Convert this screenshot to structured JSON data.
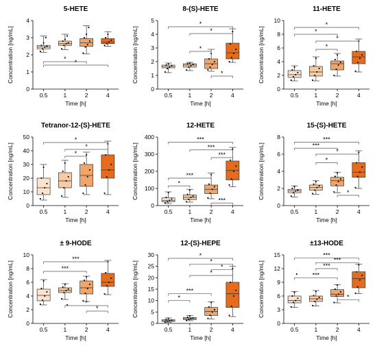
{
  "colors": {
    "t0_5": "#fbe3cf",
    "t1": "#f8cba3",
    "t2": "#f0a56b",
    "t4": "#e46c1c",
    "stroke": "#333333",
    "bracket": "#555555"
  },
  "chart_data": [
    {
      "type": "box",
      "title": "5-HETE",
      "xlabel": "Time [h]",
      "ylabel": "Concentration [ng/mL]",
      "categories": [
        "0.5",
        "1",
        "2",
        "4"
      ],
      "ylim": [
        0,
        4
      ],
      "yticks": [
        0,
        1,
        2,
        3,
        4
      ],
      "boxes": [
        {
          "min": 2.15,
          "q1": 2.35,
          "median": 2.45,
          "q3": 2.55,
          "max": 3.1,
          "points": [
            2.2,
            2.35,
            2.45,
            2.5,
            2.55,
            2.7,
            3.0
          ]
        },
        {
          "min": 2.3,
          "q1": 2.55,
          "median": 2.65,
          "q3": 2.8,
          "max": 3.2,
          "points": [
            2.35,
            2.55,
            2.65,
            2.7,
            2.8,
            2.9,
            3.1
          ]
        },
        {
          "min": 2.05,
          "q1": 2.5,
          "median": 2.7,
          "q3": 2.95,
          "max": 3.7,
          "points": [
            2.1,
            2.45,
            2.6,
            2.8,
            3.0,
            3.2,
            3.6
          ]
        },
        {
          "min": 2.5,
          "q1": 2.65,
          "median": 2.75,
          "q3": 2.95,
          "max": 3.35,
          "points": [
            2.55,
            2.65,
            2.75,
            2.85,
            3.0,
            3.2
          ]
        }
      ],
      "brackets": [
        {
          "from": 0,
          "to": 2,
          "y": 1.6,
          "label": "*"
        },
        {
          "from": 0,
          "to": 3,
          "y": 1.4,
          "label": "*"
        }
      ]
    },
    {
      "type": "box",
      "title": "8-(S)-HETE",
      "xlabel": "Time [h]",
      "ylabel": "Concentration [ng/mL]",
      "categories": [
        "0.5",
        "1",
        "2",
        "4"
      ],
      "ylim": [
        0,
        5
      ],
      "yticks": [
        0,
        1,
        2,
        3,
        4,
        5
      ],
      "boxes": [
        {
          "min": 1.2,
          "q1": 1.55,
          "median": 1.65,
          "q3": 1.75,
          "max": 1.9,
          "points": [
            1.25,
            1.5,
            1.6,
            1.7,
            1.75,
            1.85
          ]
        },
        {
          "min": 1.35,
          "q1": 1.6,
          "median": 1.75,
          "q3": 1.85,
          "max": 1.95,
          "points": [
            1.4,
            1.6,
            1.7,
            1.8,
            1.85,
            1.9
          ]
        },
        {
          "min": 1.3,
          "q1": 1.5,
          "median": 1.85,
          "q3": 2.2,
          "max": 2.9,
          "points": [
            1.4,
            1.6,
            1.8,
            2.0,
            2.2,
            2.6
          ]
        },
        {
          "min": 1.95,
          "q1": 2.2,
          "median": 2.65,
          "q3": 3.35,
          "max": 4.4,
          "points": [
            2.0,
            2.3,
            2.6,
            2.9,
            3.3,
            4.2
          ]
        }
      ],
      "brackets": [
        {
          "from": 0,
          "to": 3,
          "y": 4.55,
          "label": "*"
        },
        {
          "from": 1,
          "to": 3,
          "y": 4.05,
          "label": "*"
        },
        {
          "from": 1,
          "to": 2,
          "y": 2.75,
          "label": "*"
        },
        {
          "from": 2,
          "to": 3,
          "y": 0.95,
          "label": "*"
        }
      ]
    },
    {
      "type": "box",
      "title": "11-HETE",
      "xlabel": "Time [h]",
      "ylabel": "Concentration [ng/mL]",
      "categories": [
        "0.5",
        "1",
        "2",
        "4"
      ],
      "ylim": [
        0,
        10
      ],
      "yticks": [
        0,
        2,
        4,
        6,
        8,
        10
      ],
      "boxes": [
        {
          "min": 1.2,
          "q1": 1.7,
          "median": 2.1,
          "q3": 2.7,
          "max": 3.4,
          "points": [
            1.3,
            1.8,
            2.1,
            2.4,
            2.8,
            3.2
          ]
        },
        {
          "min": 1.2,
          "q1": 1.9,
          "median": 2.5,
          "q3": 3.3,
          "max": 4.7,
          "points": [
            1.3,
            2.0,
            2.5,
            3.0,
            3.4,
            4.5
          ]
        },
        {
          "min": 1.9,
          "q1": 2.8,
          "median": 3.7,
          "q3": 4.1,
          "max": 5.2,
          "points": [
            2.0,
            2.9,
            3.5,
            3.9,
            4.3,
            5.0
          ]
        },
        {
          "min": 2.5,
          "q1": 3.7,
          "median": 4.7,
          "q3": 5.5,
          "max": 7.3,
          "points": [
            2.6,
            3.9,
            4.5,
            5.0,
            5.5,
            7.0
          ]
        }
      ],
      "brackets": [
        {
          "from": 0,
          "to": 3,
          "y": 9.0,
          "label": "*"
        },
        {
          "from": 0,
          "to": 2,
          "y": 8.0,
          "label": "*"
        },
        {
          "from": 1,
          "to": 3,
          "y": 7.0,
          "label": "*"
        },
        {
          "from": 1,
          "to": 2,
          "y": 5.8,
          "label": "*"
        }
      ]
    },
    {
      "type": "box",
      "title": "Tetranor-12-(S)-HETE",
      "xlabel": "Time [h]",
      "ylabel": "Concentration [ng/mL]",
      "categories": [
        "0.5",
        "1",
        "2",
        "4"
      ],
      "ylim": [
        0,
        50
      ],
      "yticks": [
        0,
        10,
        20,
        30,
        40,
        50
      ],
      "boxes": [
        {
          "min": 4,
          "q1": 8,
          "median": 13,
          "q3": 20,
          "max": 30,
          "points": [
            5,
            9,
            13,
            16,
            20,
            28
          ]
        },
        {
          "min": 6,
          "q1": 13,
          "median": 18,
          "q3": 24,
          "max": 33,
          "points": [
            7,
            13,
            18,
            21,
            25,
            31
          ]
        },
        {
          "min": 8,
          "q1": 14,
          "median": 22,
          "q3": 30,
          "max": 39,
          "points": [
            9,
            15,
            21,
            26,
            31,
            37
          ]
        },
        {
          "min": 8,
          "q1": 20,
          "median": 26,
          "q3": 37,
          "max": 47,
          "points": [
            9,
            21,
            26,
            30,
            37,
            45
          ]
        }
      ],
      "brackets": [
        {
          "from": 0,
          "to": 3,
          "y": 46,
          "label": "*"
        },
        {
          "from": 1,
          "to": 3,
          "y": 41,
          "label": "*"
        },
        {
          "from": 1,
          "to": 2,
          "y": 36,
          "label": "*"
        }
      ]
    },
    {
      "type": "box",
      "title": "12-HETE",
      "xlabel": "Time [h]",
      "ylabel": "Concentration [ng/mL]",
      "categories": [
        "0.5",
        "1",
        "2",
        "4"
      ],
      "ylim": [
        0,
        400
      ],
      "yticks": [
        0,
        100,
        200,
        300,
        400
      ],
      "boxes": [
        {
          "min": 12,
          "q1": 22,
          "median": 30,
          "q3": 45,
          "max": 80,
          "points": [
            15,
            22,
            30,
            38,
            48,
            75
          ]
        },
        {
          "min": 20,
          "q1": 35,
          "median": 48,
          "q3": 62,
          "max": 95,
          "points": [
            22,
            36,
            48,
            55,
            65,
            90
          ]
        },
        {
          "min": 40,
          "q1": 70,
          "median": 95,
          "q3": 120,
          "max": 190,
          "points": [
            45,
            72,
            95,
            110,
            125,
            180
          ]
        },
        {
          "min": 110,
          "q1": 150,
          "median": 205,
          "q3": 260,
          "max": 340,
          "points": [
            120,
            155,
            200,
            230,
            265,
            330
          ]
        }
      ],
      "brackets": [
        {
          "from": 0,
          "to": 3,
          "y": 370,
          "label": "***"
        },
        {
          "from": 1,
          "to": 3,
          "y": 325,
          "label": "***"
        },
        {
          "from": 2,
          "to": 3,
          "y": 280,
          "label": "***"
        },
        {
          "from": 0,
          "to": 2,
          "y": 160,
          "label": "***"
        },
        {
          "from": 0,
          "to": 1,
          "y": 115,
          "label": "*"
        },
        {
          "from": 2,
          "to": 3,
          "y": 15,
          "label": "***"
        }
      ]
    },
    {
      "type": "box",
      "title": "15-(S)-HETE",
      "xlabel": "Time [h]",
      "ylabel": "Concentration [ng/mL]",
      "categories": [
        "0.5",
        "1",
        "2",
        "4"
      ],
      "ylim": [
        0,
        8
      ],
      "yticks": [
        0,
        2,
        4,
        6,
        8
      ],
      "boxes": [
        {
          "min": 1.0,
          "q1": 1.5,
          "median": 1.7,
          "q3": 1.9,
          "max": 2.3,
          "points": [
            1.1,
            1.5,
            1.7,
            1.8,
            2.0,
            2.2
          ]
        },
        {
          "min": 1.3,
          "q1": 1.8,
          "median": 2.1,
          "q3": 2.4,
          "max": 2.9,
          "points": [
            1.4,
            1.8,
            2.1,
            2.3,
            2.5,
            2.8
          ]
        },
        {
          "min": 1.5,
          "q1": 2.3,
          "median": 2.9,
          "q3": 3.3,
          "max": 3.9,
          "points": [
            1.6,
            2.4,
            2.8,
            3.1,
            3.4,
            3.8
          ]
        },
        {
          "min": 2.0,
          "q1": 3.3,
          "median": 3.9,
          "q3": 5.0,
          "max": 6.4,
          "points": [
            2.1,
            3.4,
            3.9,
            4.5,
            5.0,
            6.2
          ]
        }
      ],
      "brackets": [
        {
          "from": 0,
          "to": 3,
          "y": 7.4,
          "label": "***"
        },
        {
          "from": 0,
          "to": 2,
          "y": 6.7,
          "label": "***"
        },
        {
          "from": 1,
          "to": 3,
          "y": 6.0,
          "label": "*"
        },
        {
          "from": 1,
          "to": 2,
          "y": 5.0,
          "label": "*"
        },
        {
          "from": 2,
          "to": 3,
          "y": 1.2,
          "label": "*"
        }
      ]
    },
    {
      "type": "box",
      "title": "± 9-HODE",
      "xlabel": "Time [h]",
      "ylabel": "Concentration [ng/mL]",
      "categories": [
        "0.5",
        "1",
        "2",
        "4"
      ],
      "ylim": [
        0,
        10
      ],
      "yticks": [
        0,
        2,
        4,
        6,
        8,
        10
      ],
      "boxes": [
        {
          "min": 2.7,
          "q1": 3.3,
          "median": 4.1,
          "q3": 5.0,
          "max": 6.4,
          "points": [
            2.8,
            3.4,
            4.0,
            4.6,
            5.1,
            6.2
          ]
        },
        {
          "min": 3.5,
          "q1": 4.5,
          "median": 4.8,
          "q3": 5.2,
          "max": 5.8,
          "points": [
            3.6,
            4.5,
            4.8,
            5.0,
            5.3,
            5.7,
            2.7
          ]
        },
        {
          "min": 3.2,
          "q1": 4.3,
          "median": 5.2,
          "q3": 6.2,
          "max": 6.9,
          "points": [
            3.3,
            4.4,
            5.1,
            5.7,
            6.3,
            6.8
          ]
        },
        {
          "min": 4.2,
          "q1": 5.4,
          "median": 6.0,
          "q3": 7.3,
          "max": 9.2,
          "points": [
            4.3,
            5.5,
            6.0,
            6.6,
            7.4,
            9.0
          ]
        }
      ],
      "brackets": [
        {
          "from": 0,
          "to": 3,
          "y": 9.0,
          "label": "***"
        },
        {
          "from": 0,
          "to": 2,
          "y": 7.6,
          "label": "***"
        },
        {
          "from": 1,
          "to": 3,
          "y": 2.6,
          "label": "*"
        },
        {
          "from": 2,
          "to": 3,
          "y": 1.8,
          "label": "*"
        }
      ]
    },
    {
      "type": "box",
      "title": "12-(S)-HEPE",
      "xlabel": "Time [h]",
      "ylabel": "Concentration [ng/mL]",
      "categories": [
        "0.5",
        "1",
        "2",
        "4"
      ],
      "ylim": [
        0,
        30
      ],
      "yticks": [
        0,
        5,
        10,
        15,
        20,
        25,
        30
      ],
      "boxes": [
        {
          "min": 0.5,
          "q1": 0.9,
          "median": 1.2,
          "q3": 1.6,
          "max": 2.4,
          "points": [
            0.6,
            1.0,
            1.2,
            1.4,
            1.7,
            2.2
          ]
        },
        {
          "min": 1.2,
          "q1": 1.7,
          "median": 2.1,
          "q3": 2.6,
          "max": 3.5,
          "points": [
            1.3,
            1.8,
            2.1,
            2.4,
            2.7,
            3.3
          ]
        },
        {
          "min": 2.0,
          "q1": 3.5,
          "median": 5.2,
          "q3": 7.0,
          "max": 9.5,
          "points": [
            2.2,
            3.6,
            5.0,
            6.0,
            7.2,
            9.2
          ]
        },
        {
          "min": 3.0,
          "q1": 7.0,
          "median": 13.0,
          "q3": 18.0,
          "max": 25.0,
          "points": [
            3.5,
            7.5,
            12.0,
            14.5,
            18.0,
            24.0
          ]
        }
      ],
      "brackets": [
        {
          "from": 0,
          "to": 3,
          "y": 28.5,
          "label": "*"
        },
        {
          "from": 1,
          "to": 3,
          "y": 26.0,
          "label": "*"
        },
        {
          "from": 2,
          "to": 3,
          "y": 23.5,
          "label": "*"
        },
        {
          "from": 1,
          "to": 3,
          "y": 21.0,
          "label": "*"
        },
        {
          "from": 0,
          "to": 2,
          "y": 13.0,
          "label": "***"
        },
        {
          "from": 0,
          "to": 1,
          "y": 10.0,
          "label": "*"
        }
      ]
    },
    {
      "type": "box",
      "title": "±13-HODE",
      "xlabel": "Time [h]",
      "ylabel": "Concentration [ng/mL]",
      "categories": [
        "0.5",
        "1",
        "2",
        "4"
      ],
      "ylim": [
        0,
        15
      ],
      "yticks": [
        0,
        3,
        6,
        9,
        12,
        15
      ],
      "boxes": [
        {
          "min": 3.5,
          "q1": 4.5,
          "median": 5.0,
          "q3": 6.0,
          "max": 7.0,
          "points": [
            3.6,
            4.6,
            5.0,
            5.5,
            6.0,
            6.8,
            10.8
          ]
        },
        {
          "min": 3.8,
          "q1": 4.8,
          "median": 5.4,
          "q3": 6.0,
          "max": 7.2,
          "points": [
            3.9,
            4.8,
            5.3,
            5.7,
            6.1,
            7.0
          ]
        },
        {
          "min": 4.5,
          "q1": 5.9,
          "median": 6.4,
          "q3": 7.4,
          "max": 8.5,
          "points": [
            4.6,
            6.0,
            6.4,
            6.9,
            7.5,
            8.4
          ]
        },
        {
          "min": 6.5,
          "q1": 7.8,
          "median": 9.8,
          "q3": 11.3,
          "max": 13.0,
          "points": [
            6.6,
            8.0,
            9.5,
            10.5,
            11.3,
            12.8
          ]
        }
      ],
      "brackets": [
        {
          "from": 0,
          "to": 3,
          "y": 14.3,
          "label": "***"
        },
        {
          "from": 1,
          "to": 3,
          "y": 13.3,
          "label": "***"
        },
        {
          "from": 1,
          "to": 2,
          "y": 12.0,
          "label": "***"
        },
        {
          "from": 0,
          "to": 2,
          "y": 10.0,
          "label": "***"
        },
        {
          "from": 2,
          "to": 3,
          "y": 5.2,
          "label": "*"
        }
      ]
    }
  ]
}
